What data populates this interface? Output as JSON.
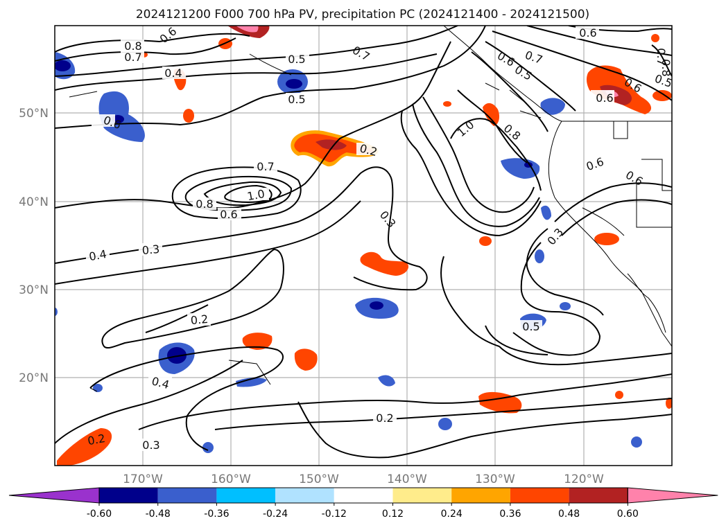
{
  "title": "2024121200 F000 700 hPa PV, precipitation PC (2024121400 - 2024121500)",
  "map": {
    "lon_labels": [
      "170°W",
      "160°W",
      "150°W",
      "140°W",
      "130°W",
      "120°W"
    ],
    "lat_labels": [
      "50°N",
      "40°N",
      "30°N",
      "20°N"
    ],
    "grid": true
  },
  "colorbar": {
    "ticks": [
      "-0.60",
      "-0.48",
      "-0.36",
      "-0.24",
      "-0.12",
      "0.12",
      "0.24",
      "0.36",
      "0.48",
      "0.60"
    ],
    "colors": [
      "#9a32cd",
      "#00008b",
      "#3a5fcd",
      "#00bfff",
      "#b0e2ff",
      "#ffffff",
      "#ffec8b",
      "#ffa500",
      "#ff4500",
      "#b22222",
      "#ff82ab"
    ],
    "extend": "both"
  },
  "contour_labels": [
    "0.8",
    "0.7",
    "0.6",
    "0.4",
    "0.5",
    "0.5",
    "0.7",
    "0.6",
    "0.5",
    "0.7",
    "0.6",
    "0.6",
    "0.5",
    "0.8",
    "0.7",
    "0.8",
    "1.0",
    "0.6",
    "0.6",
    "1.0",
    "0.7",
    "0.8",
    "0.6",
    "0.2",
    "0.6",
    "0.6",
    "0.3",
    "0.3",
    "0.4",
    "0.3",
    "0.2",
    "0.5",
    "0.4",
    "0.2",
    "0.2",
    "0.3"
  ]
}
